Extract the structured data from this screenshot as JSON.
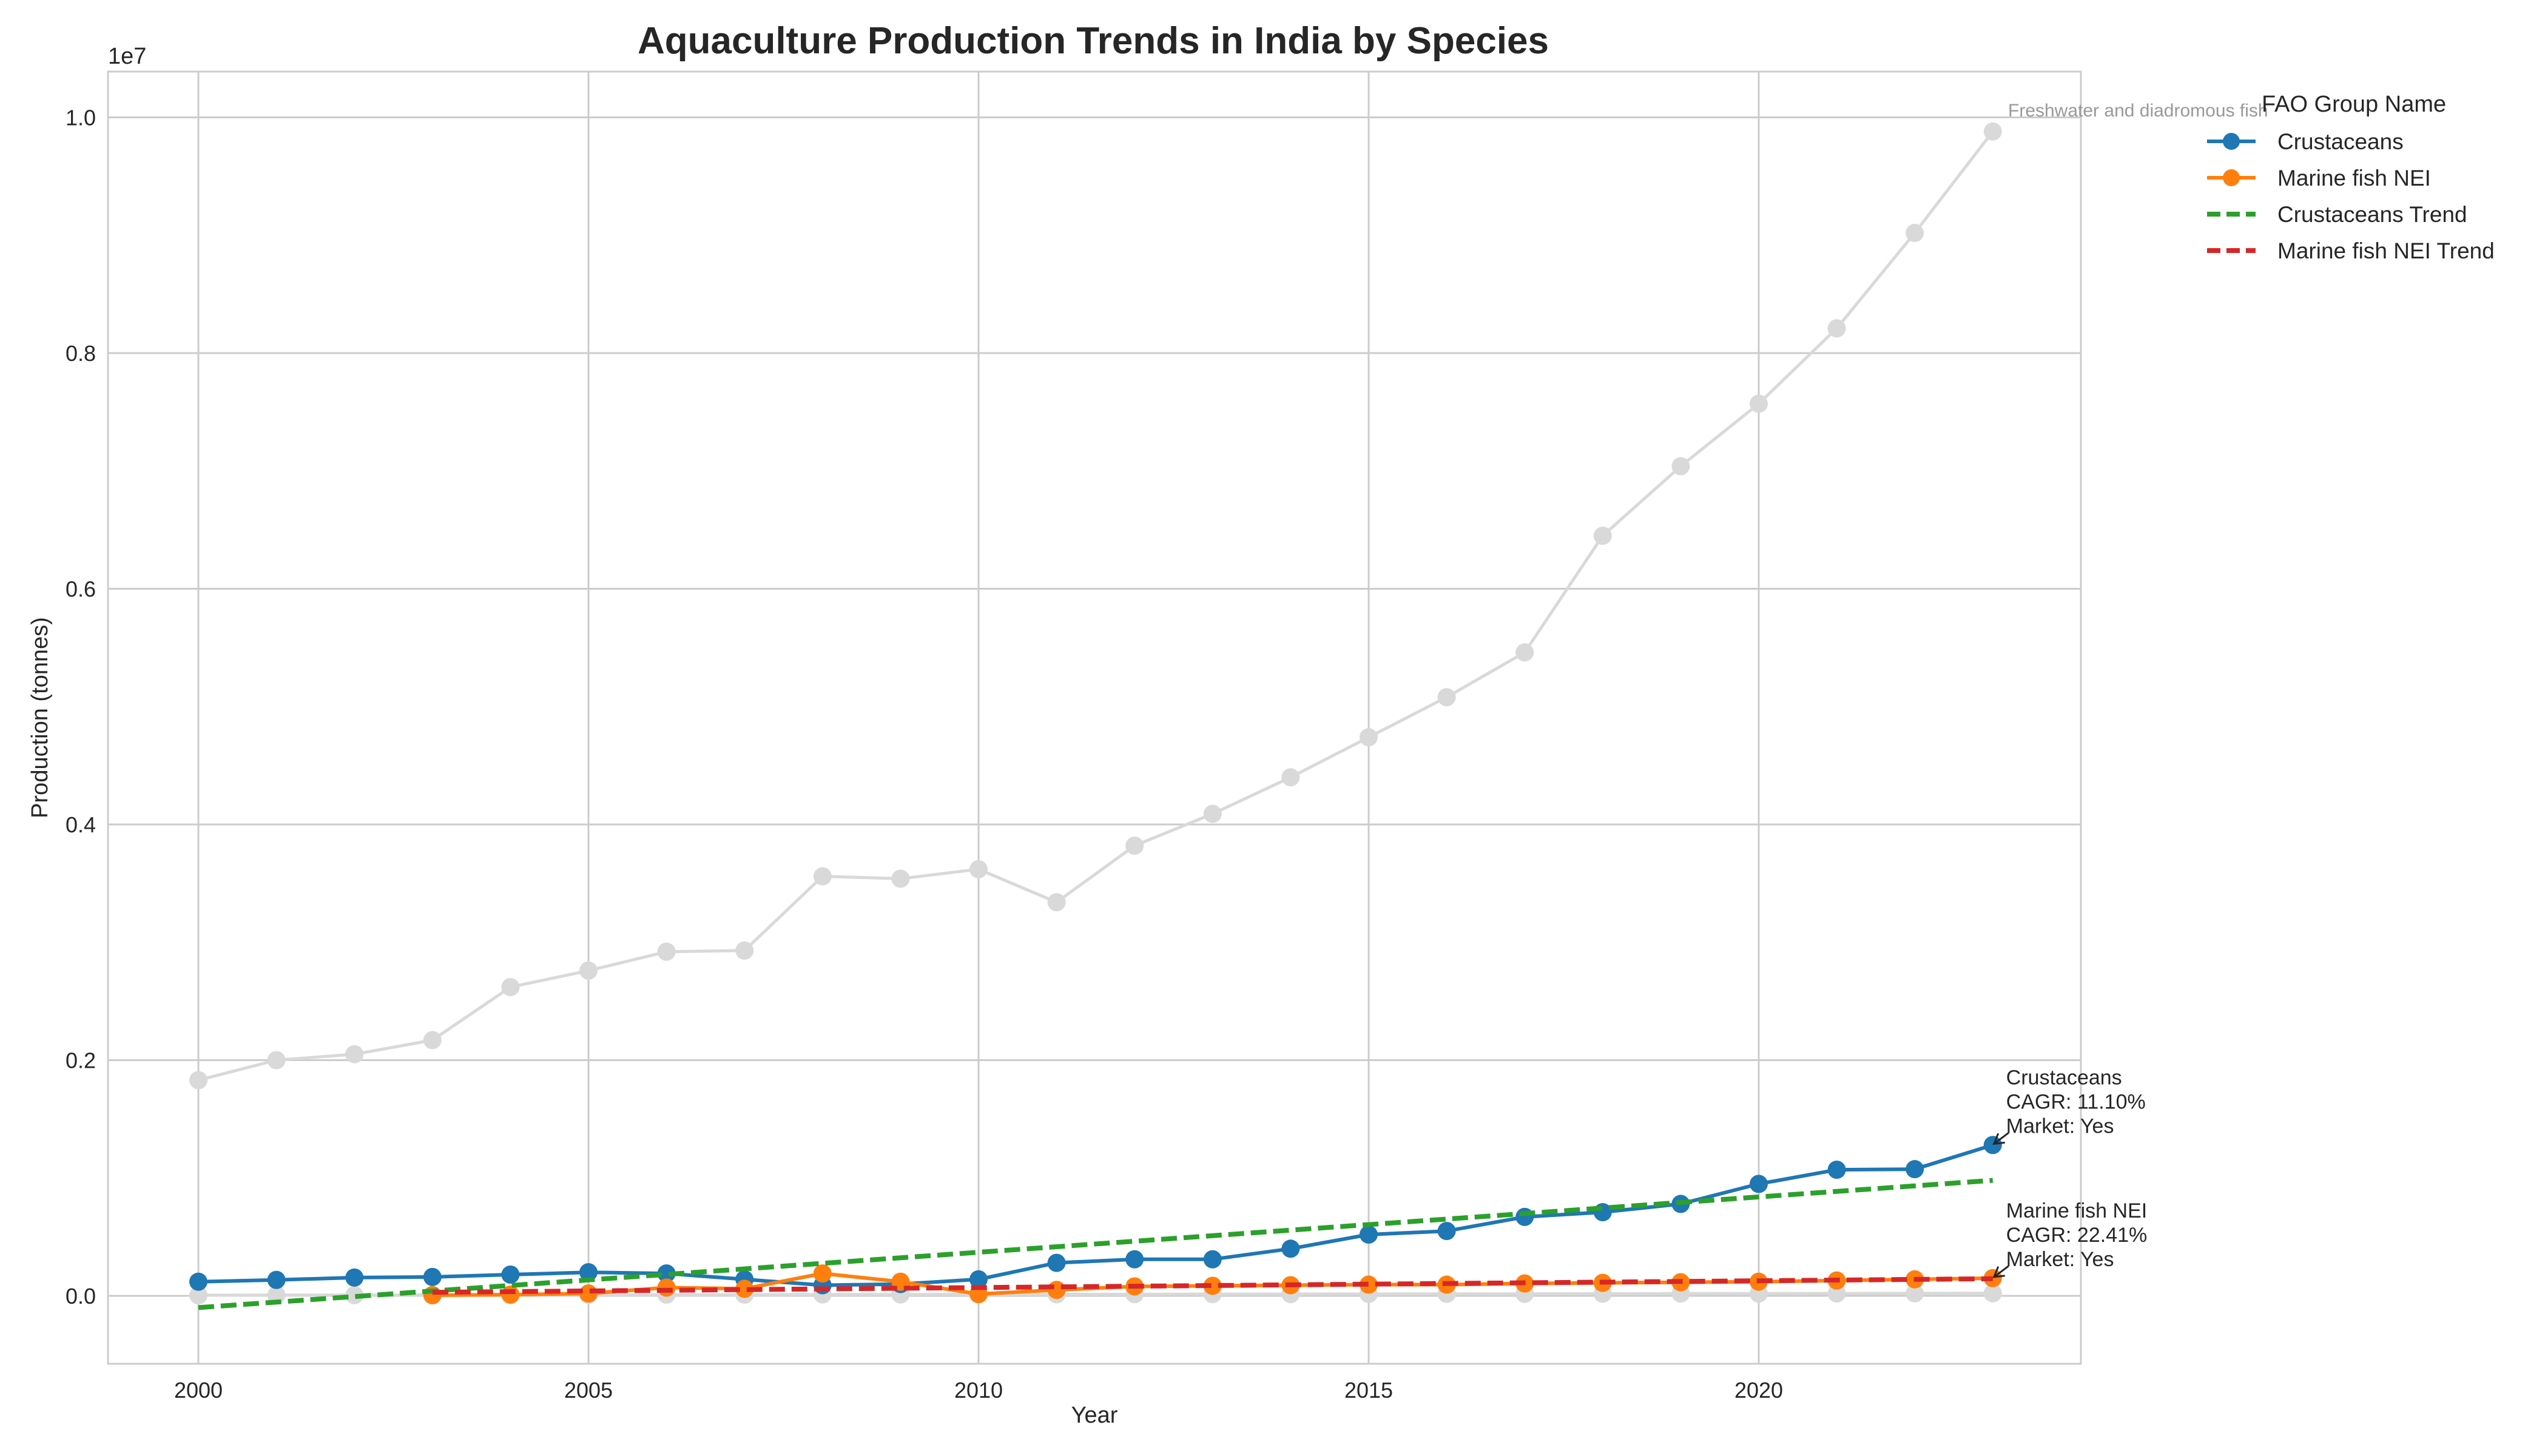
{
  "chart_data": {
    "type": "line",
    "title": "Aquaculture Production Trends in India by Species",
    "xlabel": "Year",
    "ylabel": "Production (tonnes)",
    "y_scale_label": "1e7",
    "xlim": [
      1999,
      2024
    ],
    "ylim": [
      -600000,
      10400000
    ],
    "x_ticks": [
      2000,
      2005,
      2010,
      2015,
      2020
    ],
    "x_tick_labels": [
      "2000",
      "2005",
      "2010",
      "2015",
      "2020"
    ],
    "y_ticks": [
      0,
      2000000,
      4000000,
      6000000,
      8000000,
      10000000
    ],
    "y_tick_labels": [
      "0.0",
      "0.2",
      "0.4",
      "0.6",
      "0.8",
      "1.0"
    ],
    "grid": true,
    "legend": {
      "title": "FAO Group Name",
      "placement": "outside-top-right",
      "entries": [
        "Crustaceans",
        "Marine fish NEI",
        "Crustaceans Trend",
        "Marine fish NEI Trend"
      ]
    },
    "x": [
      2000,
      2001,
      2002,
      2003,
      2004,
      2005,
      2006,
      2007,
      2008,
      2009,
      2010,
      2011,
      2012,
      2013,
      2014,
      2015,
      2016,
      2017,
      2018,
      2019,
      2020,
      2021,
      2022,
      2023
    ],
    "series": [
      {
        "name": "Freshwater and diadromous fish",
        "style": "background",
        "color": "#d9d9d9",
        "x": [
          2000,
          2001,
          2002,
          2003,
          2004,
          2005,
          2006,
          2007,
          2008,
          2009,
          2010,
          2011,
          2012,
          2013,
          2014,
          2015,
          2016,
          2017,
          2018,
          2019,
          2020,
          2021,
          2022,
          2023
        ],
        "values": [
          1830000,
          2000000,
          2050000,
          2170000,
          2620000,
          2760000,
          2920000,
          2930000,
          3560000,
          3540000,
          3620000,
          3340000,
          3820000,
          4090000,
          4400000,
          4740000,
          5080000,
          5460000,
          6450000,
          7040000,
          7570000,
          8210000,
          9020000,
          9880000
        ]
      },
      {
        "name": "",
        "style": "background",
        "color": "#d9d9d9",
        "x": [
          2000,
          2001,
          2002,
          2003,
          2004,
          2005,
          2006,
          2007,
          2008,
          2009,
          2010,
          2011,
          2012,
          2013,
          2014,
          2015,
          2016,
          2017,
          2018,
          2019,
          2020,
          2021,
          2022,
          2023
        ],
        "values": [
          5000,
          6000,
          6000,
          8000,
          8000,
          9000,
          10000,
          10000,
          12000,
          12000,
          13000,
          13000,
          14000,
          15000,
          15000,
          16000,
          17000,
          17000,
          18000,
          19000,
          19000,
          20000,
          21000,
          22000
        ]
      },
      {
        "name": "Crustaceans",
        "style": "main",
        "color": "#1f77b4",
        "x": [
          2000,
          2001,
          2002,
          2003,
          2004,
          2005,
          2006,
          2007,
          2008,
          2009,
          2010,
          2011,
          2012,
          2013,
          2014,
          2015,
          2016,
          2017,
          2018,
          2019,
          2020,
          2021,
          2022,
          2023
        ],
        "values": [
          120000,
          135000,
          155000,
          160000,
          180000,
          200000,
          190000,
          140000,
          90000,
          100000,
          140000,
          280000,
          310000,
          310000,
          400000,
          520000,
          550000,
          670000,
          710000,
          780000,
          950000,
          1070000,
          1075000,
          1280000
        ]
      },
      {
        "name": "Marine fish NEI",
        "style": "main",
        "color": "#ff7f0e",
        "x": [
          2003,
          2004,
          2005,
          2006,
          2007,
          2008,
          2009,
          2010,
          2011,
          2012,
          2013,
          2014,
          2015,
          2016,
          2017,
          2018,
          2019,
          2020,
          2021,
          2022,
          2023
        ],
        "values": [
          5000,
          10000,
          20000,
          70000,
          60000,
          190000,
          120000,
          15000,
          50000,
          80000,
          85000,
          90000,
          95000,
          95000,
          105000,
          110000,
          115000,
          120000,
          130000,
          140000,
          150000
        ]
      },
      {
        "name": "Crustaceans Trend",
        "style": "trend",
        "color": "#2ca02c",
        "x": [
          2000,
          2023
        ],
        "values": [
          -100000,
          980000
        ]
      },
      {
        "name": "Marine fish NEI Trend",
        "style": "trend",
        "color": "#d62728",
        "x": [
          2003,
          2023
        ],
        "values": [
          30000,
          145000
        ]
      }
    ],
    "annotations": [
      {
        "series": "Crustaceans",
        "lines": [
          "Crustaceans",
          "CAGR: 11.10%",
          "Market: Yes"
        ],
        "x": 2023,
        "y": 1280000
      },
      {
        "series": "Marine fish NEI",
        "lines": [
          "Marine fish NEI",
          "CAGR: 22.41%",
          "Market: Yes"
        ],
        "x": 2023,
        "y": 150000
      }
    ],
    "background_label": "Freshwater and diadromous fish"
  }
}
